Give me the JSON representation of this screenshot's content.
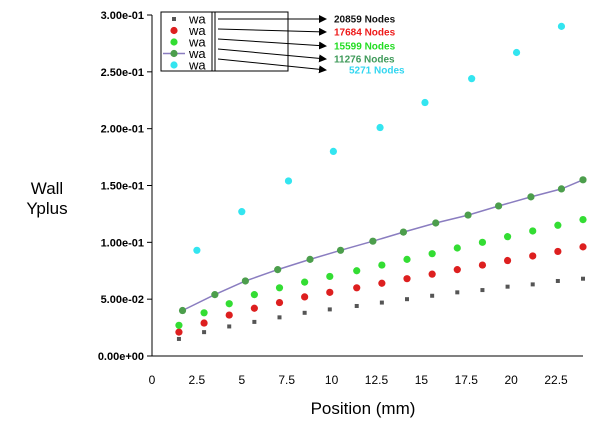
{
  "chart_data": {
    "type": "scatter",
    "xlabel": "Position (mm)",
    "ylabel": [
      "Wall",
      "Yplus"
    ],
    "xlim": [
      0,
      24
    ],
    "ylim": [
      0,
      0.3
    ],
    "x_ticks": [
      0,
      2.5,
      5,
      7.5,
      10,
      12.5,
      15,
      17.5,
      20,
      22.5
    ],
    "x_tick_labels": [
      "0",
      "2.5",
      "5",
      "7.5",
      "10",
      "12.5",
      "15",
      "17.5",
      "20",
      "22.5"
    ],
    "y_ticks": [
      0,
      0.05,
      0.1,
      0.15,
      0.2,
      0.25,
      0.3
    ],
    "y_tick_labels": [
      "0.00e+00",
      "5.00e-02",
      "1.00e-01",
      "1.50e-01",
      "2.00e-01",
      "2.50e-01",
      "3.00e-01"
    ],
    "grid": false,
    "legend_position": "top-left",
    "legend_labels": [
      "wa",
      "wa",
      "wa",
      "wa",
      "wa"
    ],
    "series": [
      {
        "name": "20859 Nodes",
        "color": "#555555",
        "marker": "square",
        "line": false,
        "x": [
          1.5,
          2.9,
          4.3,
          5.7,
          7.1,
          8.5,
          9.9,
          11.4,
          12.8,
          14.2,
          15.6,
          17.0,
          18.4,
          19.8,
          21.2,
          22.6,
          24.0
        ],
        "y": [
          0.015,
          0.021,
          0.026,
          0.03,
          0.034,
          0.038,
          0.041,
          0.044,
          0.047,
          0.05,
          0.053,
          0.056,
          0.058,
          0.061,
          0.063,
          0.066,
          0.068
        ]
      },
      {
        "name": "17684 Nodes",
        "color": "#dd1f1f",
        "marker": "circle",
        "line": false,
        "x": [
          1.5,
          2.9,
          4.3,
          5.7,
          7.1,
          8.5,
          9.9,
          11.4,
          12.8,
          14.2,
          15.6,
          17.0,
          18.4,
          19.8,
          21.2,
          22.6,
          24.0
        ],
        "y": [
          0.021,
          0.029,
          0.036,
          0.042,
          0.047,
          0.052,
          0.056,
          0.06,
          0.064,
          0.068,
          0.072,
          0.076,
          0.08,
          0.084,
          0.088,
          0.092,
          0.096
        ]
      },
      {
        "name": "15599 Nodes",
        "color": "#33dd33",
        "marker": "circle",
        "line": false,
        "x": [
          1.5,
          2.9,
          4.3,
          5.7,
          7.1,
          8.5,
          9.9,
          11.4,
          12.8,
          14.2,
          15.6,
          17.0,
          18.4,
          19.8,
          21.2,
          22.6,
          24.0
        ],
        "y": [
          0.027,
          0.038,
          0.046,
          0.054,
          0.06,
          0.065,
          0.07,
          0.075,
          0.08,
          0.085,
          0.09,
          0.095,
          0.1,
          0.105,
          0.11,
          0.115,
          0.12
        ]
      },
      {
        "name": "11276 Nodes",
        "color": "#4c9e4c",
        "line_color": "#8a7dc0",
        "marker": "circle",
        "line": true,
        "x": [
          1.7,
          3.5,
          5.2,
          7.0,
          8.8,
          10.5,
          12.3,
          14.0,
          15.8,
          17.6,
          19.3,
          21.1,
          22.8,
          24.0
        ],
        "y": [
          0.04,
          0.054,
          0.066,
          0.076,
          0.085,
          0.093,
          0.101,
          0.109,
          0.117,
          0.124,
          0.132,
          0.14,
          0.147,
          0.155
        ]
      },
      {
        "name": "5271 Nodes",
        "color": "#33e5f0",
        "marker": "circle",
        "line": false,
        "x": [
          2.5,
          5.0,
          7.6,
          10.1,
          12.7,
          15.2,
          17.8,
          20.3,
          22.8
        ],
        "y": [
          0.093,
          0.127,
          0.154,
          0.18,
          0.201,
          0.223,
          0.244,
          0.267,
          0.29
        ]
      }
    ],
    "annotations": [
      {
        "text": "20859 Nodes",
        "color": "#111111"
      },
      {
        "text": "17684 Nodes",
        "color": "#ee1a1a"
      },
      {
        "text": "15599 Nodes",
        "color": "#22dd22"
      },
      {
        "text": "11276 Nodes",
        "color": "#3f9a5a"
      },
      {
        "text": "5271 Nodes",
        "color": "#33d6f0"
      }
    ]
  }
}
